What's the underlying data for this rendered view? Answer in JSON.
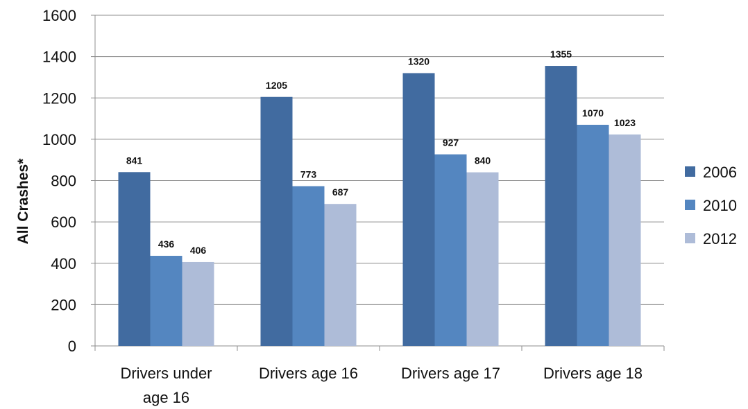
{
  "chart_data": {
    "type": "bar",
    "ylabel": "All Crashes*",
    "xlabel": "",
    "ylim": [
      0,
      1600
    ],
    "yticks": [
      0,
      200,
      400,
      600,
      800,
      1000,
      1200,
      1400,
      1600
    ],
    "grid": true,
    "legend_position": "right",
    "categories": [
      [
        "Drivers under",
        "age 16"
      ],
      [
        "Drivers age 16"
      ],
      [
        "Drivers age 17"
      ],
      [
        "Drivers age 18"
      ]
    ],
    "series": [
      {
        "name": "2006",
        "color": "#416ba0",
        "values": [
          841,
          1205,
          1320,
          1355
        ]
      },
      {
        "name": "2010",
        "color": "#5486c0",
        "values": [
          436,
          773,
          927,
          1070
        ]
      },
      {
        "name": "2012",
        "color": "#aebcd8",
        "values": [
          406,
          687,
          840,
          1023
        ]
      }
    ]
  }
}
